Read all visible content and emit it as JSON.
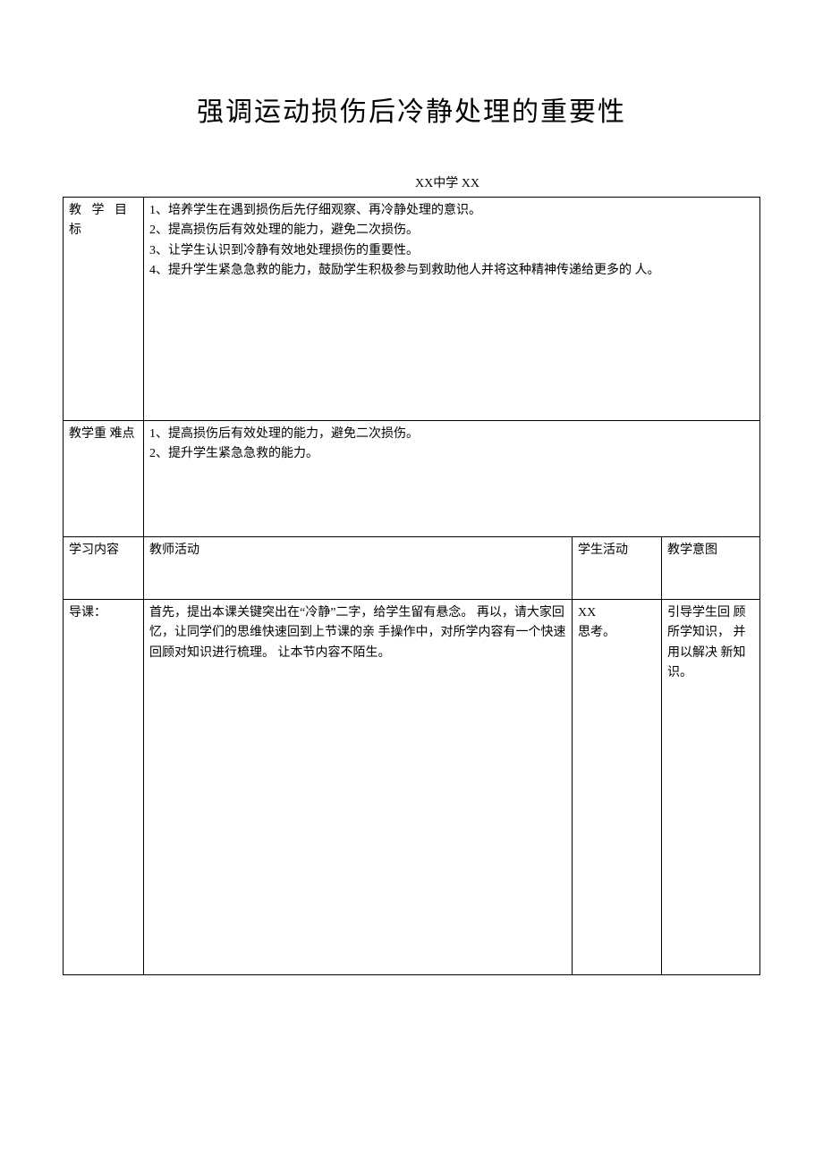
{
  "title": "强调运动损伤后冷静处理的重要性",
  "subtitle": "XX中学 XX",
  "rows": {
    "goals": {
      "label": "教 学 目 标",
      "content": "1、培养学生在遇到损伤后先仔细观察、再冷静处理的意识。\n2、提高损伤后有效处理的能力，避免二次损伤。\n3、让学生认识到冷静有效地处理损伤的重要性。\n4、提升学生紧急急救的能力，鼓励学生积极参与到救助他人并将这种精神传递给更多的 人。"
    },
    "difficulties": {
      "label": "教学重 难点",
      "content": "1、提高损伤后有效处理的能力，避免二次损伤。\n2、提升学生紧急急救的能力。"
    },
    "headers": {
      "c1": "学习内容",
      "c2": "教师活动",
      "c3": "学生活动",
      "c4": "教学意图"
    },
    "intro": {
      "c1": "导课：",
      "c2": "首先，提出本课关键突出在“冷静”二字，给学生留有悬念。 再以，请大家回忆，让同学们的思维快速回到上节课的亲 手操作中，对所学内容有一个快速回顾对知识进行梳理。 让本节内容不陌生。",
      "c3": "XX\n思考。",
      "c4": "引导学生回 顾所学知识， 并用以解决 新知识。"
    }
  },
  "style": {
    "background_color": "#ffffff",
    "border_color": "#000000",
    "text_color": "#000000",
    "title_fontsize": 30,
    "body_fontsize": 14
  }
}
